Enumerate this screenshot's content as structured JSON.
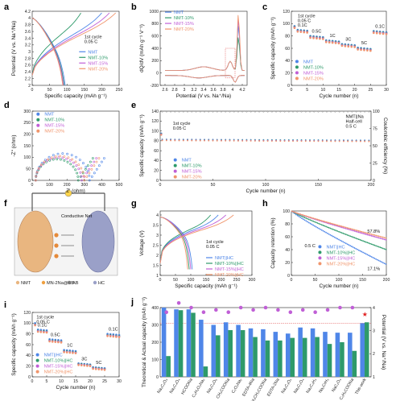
{
  "colors": {
    "nmt": "#4f86e8",
    "nmt10": "#2e9a6a",
    "nmt15": "#c05fd6",
    "nmt20": "#f0956c",
    "bar": "#4f86e8",
    "bar2": "#2e9a6a",
    "dot": "#c05fd6"
  },
  "legends": {
    "nmt": [
      "NMT",
      "NMT-10%",
      "NMT-15%",
      "NMT-20%"
    ],
    "hc": [
      "NMT||HC",
      "NMT-10%||HC",
      "NMT-15%||HC",
      "NMT-20%||HC"
    ]
  },
  "panel_f": {
    "label": "Conductive Net",
    "legend": [
      "NMT",
      "MN-2Na@KB",
      "AB",
      "HC"
    ]
  },
  "chart_data": [
    {
      "id": "a",
      "type": "line",
      "xlabel": "Specific capacity (mAh g⁻¹)",
      "ylabel": "Potential (V vs. Na⁺/Na)",
      "xlim": [
        0,
        250
      ],
      "ylim": [
        2.0,
        4.2
      ],
      "xticks": [
        0,
        50,
        100,
        150,
        200,
        250
      ],
      "yticks": [
        2.0,
        2.2,
        2.4,
        2.6,
        2.8,
        3.0,
        3.2,
        3.4,
        3.6,
        3.8,
        4.0,
        4.2
      ],
      "annotation": [
        "1st cycle",
        "0.05 C"
      ],
      "legend": "nmt",
      "charge_max": [
        200,
        140,
        222,
        240
      ],
      "discharge_max": [
        95,
        92,
        90,
        88
      ]
    },
    {
      "id": "b",
      "type": "line",
      "xlabel": "Potential (V vs. Na⁺/Na)",
      "ylabel": "dQ/dV (mAh g⁻¹ V⁻¹)",
      "xlim": [
        2.5,
        4.3
      ],
      "ylim": [
        -200,
        1000
      ],
      "xticks": [
        2.6,
        2.8,
        3.0,
        3.2,
        3.4,
        3.6,
        3.8,
        4.0,
        4.2
      ],
      "yticks": [
        -200,
        0,
        200,
        400,
        600,
        800,
        1000
      ],
      "legend": "nmt",
      "peak_height": [
        760,
        560,
        860,
        940
      ]
    },
    {
      "id": "c",
      "type": "scatter",
      "xlabel": "Cycle number (n)",
      "ylabel": "Specific capacity (mAh g⁻¹)",
      "xlim": [
        0,
        30
      ],
      "ylim": [
        0,
        120
      ],
      "xticks": [
        0,
        5,
        10,
        15,
        20,
        25,
        30
      ],
      "yticks": [
        0,
        20,
        40,
        60,
        80,
        100,
        120
      ],
      "legend": "nmt",
      "rates": [
        "0.1C",
        "0.5C",
        "1C",
        "3C",
        "5C",
        "0.1C"
      ],
      "annotation": [
        "1st cycle",
        "0.05 C"
      ],
      "series": [
        {
          "name": "NMT",
          "values": [
            96,
            90,
            80,
            73,
            67,
            61,
            88
          ]
        },
        {
          "name": "NMT-10%",
          "values": [
            95,
            89,
            79,
            72,
            66,
            60,
            87
          ]
        },
        {
          "name": "NMT-15%",
          "values": [
            94,
            88,
            78,
            71,
            65,
            59,
            86
          ]
        },
        {
          "name": "NMT-20%",
          "values": [
            93,
            87,
            77,
            70,
            64,
            58,
            85
          ]
        }
      ]
    },
    {
      "id": "d",
      "type": "line",
      "xlabel": "Z' (ohm)",
      "ylabel": "-Z'' (ohm)",
      "xlim": [
        0,
        500
      ],
      "ylim": [
        0,
        300
      ],
      "xticks": [
        0,
        100,
        200,
        300,
        400,
        500
      ],
      "yticks": [
        0,
        50,
        100,
        150,
        200,
        250,
        300
      ],
      "legend": "nmt",
      "semicircle_end": [
        330,
        265,
        285,
        300
      ]
    },
    {
      "id": "e",
      "type": "scatter",
      "xlabel": "Cycle number (n)",
      "ylabel": "Specific capacity (mAh g⁻¹)",
      "y2label": "Coulombic efficiency (%)",
      "xlim": [
        0,
        200
      ],
      "ylim": [
        0,
        140
      ],
      "y2lim": [
        0,
        100
      ],
      "xticks": [
        0,
        50,
        100,
        150,
        200
      ],
      "yticks": [
        0,
        20,
        40,
        60,
        80,
        100,
        120,
        140
      ],
      "y2ticks": [
        0,
        25,
        50,
        75,
        100
      ],
      "legend": "nmt",
      "annotation": [
        "1st cycle",
        "0.05 C"
      ],
      "annotation2": [
        "NMT||Na",
        "Half-cell",
        "0.5 C"
      ],
      "capacity": [
        83,
        82,
        81,
        80
      ],
      "efficiency": 99.5
    },
    {
      "id": "g",
      "type": "line",
      "xlabel": "Specific capacity (mAh g⁻¹)",
      "ylabel": "Voltage (V)",
      "xlim": [
        0,
        300
      ],
      "ylim": [
        1.0,
        4.2
      ],
      "xticks": [
        0,
        50,
        100,
        150,
        200,
        250,
        300
      ],
      "yticks": [
        1.0,
        1.5,
        2.0,
        2.5,
        3.0,
        3.5,
        4.0
      ],
      "legend": "hc",
      "annotation": [
        "1st cycle",
        "0.05 C"
      ],
      "charge_max": [
        190,
        165,
        215,
        240
      ],
      "discharge_max": [
        105,
        95,
        100,
        90
      ]
    },
    {
      "id": "h",
      "type": "line",
      "xlabel": "Cycle number (n)",
      "ylabel": "Capacity retention (%)",
      "xlim": [
        0,
        200
      ],
      "ylim": [
        0,
        100
      ],
      "xticks": [
        0,
        50,
        100,
        150,
        200
      ],
      "yticks": [
        0,
        20,
        40,
        60,
        80,
        100
      ],
      "legend": "hc",
      "annotation": "0.5 C",
      "end_values": [
        17.1,
        40,
        55,
        57.8
      ],
      "labels": [
        "57.8%",
        "17.1%"
      ]
    },
    {
      "id": "i",
      "type": "scatter",
      "xlabel": "Cycle number (n)",
      "ylabel": "Specific capacity (mAh g⁻¹)",
      "xlim": [
        0,
        30
      ],
      "ylim": [
        0,
        120
      ],
      "xticks": [
        0,
        5,
        10,
        15,
        20,
        25,
        30
      ],
      "yticks": [
        0,
        20,
        40,
        60,
        80,
        100,
        120
      ],
      "legend": "hc",
      "annotation": [
        "1st cycle",
        "0.05 C"
      ],
      "rates": [
        "0.1C",
        "0.5C",
        "1C",
        "3C",
        "5C",
        "0.1C"
      ],
      "series": [
        {
          "name": "NMT||HC",
          "values": [
            100,
            88,
            70,
            50,
            25,
            18,
            80
          ]
        },
        {
          "name": "NMT-10%||HC",
          "values": [
            98,
            86,
            68,
            48,
            24,
            17,
            78
          ]
        },
        {
          "name": "NMT-15%||HC",
          "values": [
            97,
            85,
            67,
            47,
            23,
            16,
            77
          ]
        },
        {
          "name": "NMT-20%||HC",
          "values": [
            96,
            84,
            66,
            46,
            22,
            15,
            76
          ]
        }
      ]
    },
    {
      "id": "j",
      "type": "bar",
      "ylabel": "Theoretical & Actual capacity (mAh g⁻¹)",
      "y2label": "Potential (V vs. Na⁺/Na)",
      "ylim": [
        0,
        400
      ],
      "y2lim": [
        1,
        4
      ],
      "yticks": [
        0,
        100,
        200,
        300,
        400
      ],
      "y2ticks": [
        1,
        2,
        3,
        4
      ],
      "categories": [
        "Na₂C₂O₄",
        "Na₂C₄O₄",
        "HCOONa",
        "C₄H₄O₄Na₂",
        "Na₂C₆O₆",
        "CH₃COONa",
        "C₂O₄Na₂",
        "EDTA-4Na",
        "CH₃CH₂COONa",
        "EDTA-2Na",
        "Na₂C₃O₅",
        "Na₂C₂O₄",
        "Na₂C₃H₃",
        "Na₂CrH₃",
        "NaC₂O₄",
        "C₂H₅COONa",
        "This work"
      ],
      "theoretical": [
        400,
        390,
        390,
        330,
        300,
        315,
        300,
        280,
        275,
        260,
        250,
        285,
        280,
        260,
        255,
        255,
        310
      ],
      "actual": [
        120,
        385,
        370,
        60,
        240,
        270,
        270,
        230,
        210,
        210,
        225,
        225,
        230,
        190,
        200,
        150,
        315
      ],
      "potential": [
        3.8,
        4.2,
        4.0,
        3.8,
        3.9,
        3.8,
        4.0,
        3.9,
        4.0,
        3.9,
        3.8,
        3.9,
        3.8,
        3.9,
        4.0,
        4.0,
        3.7
      ],
      "highlight": "This work"
    }
  ]
}
